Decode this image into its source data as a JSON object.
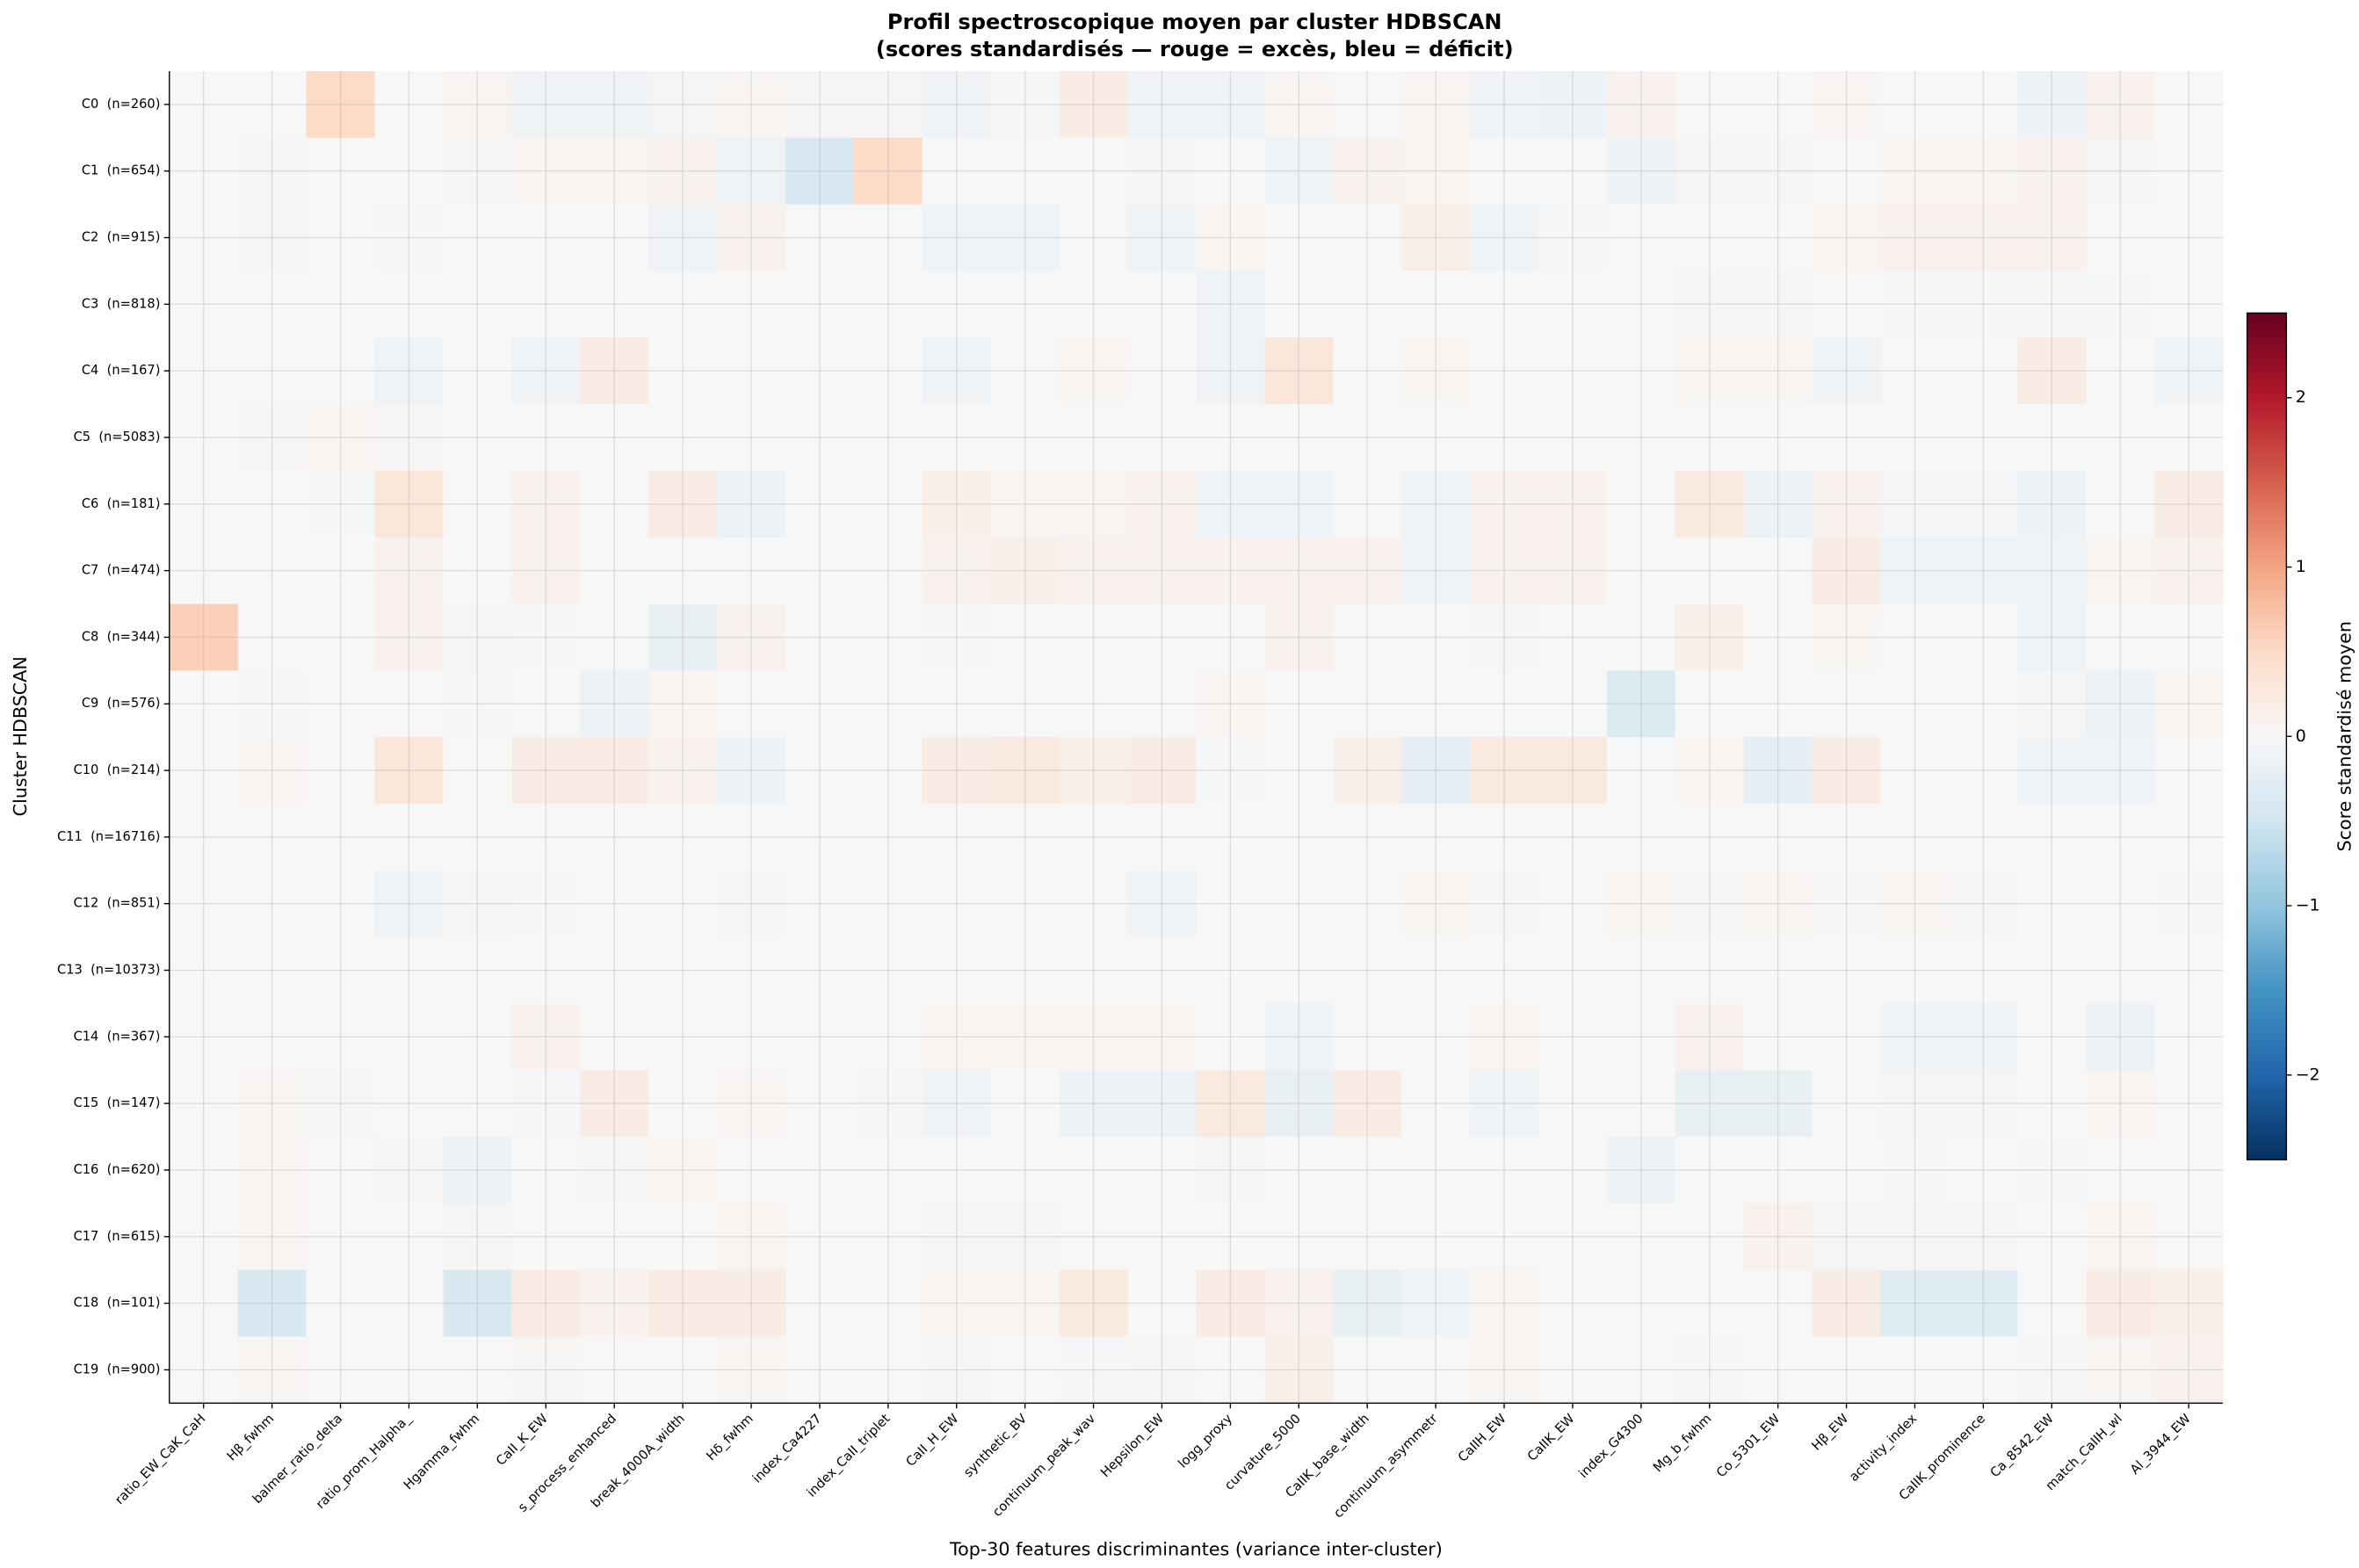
{
  "chart_data": {
    "type": "heatmap",
    "title": "Profil spectroscopique moyen par cluster HDBSCAN",
    "subtitle": "(scores standardisés — rouge = excès, bleu = déficit)",
    "x_label": "Top-30 features discriminantes (variance inter-cluster)",
    "y_label": "Cluster HDBSCAN",
    "colorbar_label": "Score standardisé moyen",
    "x_categories": [
      "ratio_EW_CaK_CaH",
      "Hβ_fwhm",
      "balmer_ratio_delta",
      "ratio_prom_Halpha_",
      "Hgamma_fwhm",
      "CaII_K_EW",
      "s_process_enhanced",
      "break_4000A_width",
      "Hδ_fwhm",
      "index_Ca4227",
      "index_CaII_triplet",
      "CaII_H_EW",
      "synthetic_BV",
      "continuum_peak_wav",
      "Hepsilon_EW",
      "logg_proxy",
      "curvature_5000",
      "CaIIK_base_width",
      "continuum_asymmetr",
      "CaIIH_EW",
      "CaIIK_EW",
      "index_G4300",
      "Mg_b_fwhm",
      "Co_5301_EW",
      "Hβ_EW",
      "activity_index",
      "CaIIK_prominence",
      "Ca_8542_EW",
      "match_CaIIH_wl",
      "Al_3944_EW"
    ],
    "y_categories": [
      "C0  (n=260)",
      "C1  (n=654)",
      "C2  (n=915)",
      "C3  (n=818)",
      "C4  (n=167)",
      "C5  (n=5083)",
      "C6  (n=181)",
      "C7  (n=474)",
      "C8  (n=344)",
      "C9  (n=576)",
      "C10  (n=214)",
      "C11  (n=16716)",
      "C12  (n=851)",
      "C13  (n=10373)",
      "C14  (n=367)",
      "C15  (n=147)",
      "C16  (n=620)",
      "C17  (n=615)",
      "C18  (n=101)",
      "C19  (n=900)"
    ],
    "values": [
      [
        0,
        0,
        0.5,
        0,
        0.05,
        -0.1,
        -0.1,
        -0.05,
        0.05,
        0.03,
        0.03,
        -0.1,
        -0.03,
        0.2,
        -0.1,
        -0.1,
        0.05,
        0,
        0.05,
        -0.1,
        -0.15,
        0.1,
        0,
        0,
        0.05,
        0,
        0,
        -0.15,
        0.1,
        0
      ],
      [
        0,
        -0.05,
        0,
        0,
        -0.05,
        0.05,
        0.05,
        0.1,
        -0.1,
        -0.4,
        0.5,
        0,
        0,
        0,
        0.03,
        0,
        -0.1,
        0.1,
        0.05,
        0,
        0,
        -0.15,
        0.03,
        0.03,
        0,
        0.05,
        0.05,
        0.1,
        -0.05,
        0
      ],
      [
        0,
        -0.05,
        0,
        -0.03,
        0,
        0,
        0,
        -0.1,
        0.1,
        0,
        0,
        -0.1,
        -0.1,
        0,
        -0.1,
        0.05,
        0,
        0,
        0.15,
        -0.1,
        -0.03,
        0,
        0,
        0,
        0.05,
        0.1,
        0.1,
        0.1,
        0,
        0
      ],
      [
        0,
        0,
        0,
        0,
        0,
        0,
        0,
        0,
        0,
        0,
        0,
        0,
        0,
        0,
        0,
        -0.1,
        0,
        0,
        0,
        0,
        0,
        0,
        0.03,
        0.03,
        0,
        -0.03,
        -0.03,
        -0.03,
        -0.03,
        0
      ],
      [
        0,
        0,
        0,
        -0.1,
        0,
        -0.1,
        0.2,
        0,
        0,
        0,
        0,
        -0.1,
        0,
        0.05,
        0,
        -0.1,
        0.3,
        0,
        0.05,
        0,
        0,
        0,
        0.05,
        0.05,
        -0.1,
        0,
        0,
        0.2,
        0,
        -0.1
      ],
      [
        0,
        0.03,
        0.05,
        0.03,
        0,
        0,
        0,
        0,
        0,
        0,
        0,
        0,
        0,
        0,
        0,
        0,
        0,
        0,
        0,
        0,
        0,
        0,
        0,
        0,
        0,
        0,
        0,
        0,
        0,
        0
      ],
      [
        0,
        0,
        -0.03,
        0.3,
        0,
        0.1,
        0,
        0.2,
        -0.15,
        0,
        0,
        0.15,
        0.05,
        0.05,
        0.1,
        -0.1,
        -0.1,
        0,
        -0.1,
        0.1,
        0.1,
        0,
        0.25,
        -0.15,
        0.1,
        -0.05,
        -0.05,
        -0.15,
        0,
        0.2
      ],
      [
        0,
        0,
        0,
        0.1,
        0,
        0.1,
        0,
        0,
        0,
        0,
        0,
        0.1,
        0.15,
        0.1,
        0.1,
        0.1,
        0.1,
        0.1,
        -0.1,
        0.1,
        0.1,
        0,
        0,
        0,
        0.2,
        -0.1,
        -0.1,
        -0.1,
        0.05,
        0.1
      ],
      [
        0.6,
        0,
        0,
        0.1,
        -0.05,
        -0.03,
        0,
        -0.2,
        0.1,
        0,
        0,
        -0.03,
        0,
        0,
        0,
        0,
        0.1,
        0,
        0,
        -0.03,
        0,
        0,
        0.15,
        0,
        0.05,
        0,
        0,
        -0.1,
        0,
        0
      ],
      [
        0,
        -0.03,
        0,
        0,
        -0.03,
        0,
        -0.15,
        0.05,
        0,
        0,
        0,
        0,
        0,
        0,
        0,
        0.05,
        0,
        0,
        0,
        0,
        0,
        -0.35,
        0,
        0,
        0,
        0,
        0,
        -0.05,
        -0.15,
        0.05
      ],
      [
        0,
        0.05,
        0,
        0.3,
        0,
        0.2,
        0.2,
        0.1,
        -0.15,
        0,
        0,
        0.2,
        0.25,
        0.15,
        0.2,
        -0.03,
        0,
        0.15,
        -0.25,
        0.25,
        0.25,
        0,
        0.05,
        -0.25,
        0.2,
        0,
        0,
        -0.1,
        -0.1,
        0
      ],
      [
        0,
        0,
        0,
        0,
        0,
        0,
        0,
        0,
        0,
        0,
        0,
        0,
        0,
        0,
        0,
        0,
        0,
        0,
        0,
        0,
        0,
        0,
        0,
        0,
        0,
        0,
        0,
        0,
        0,
        0
      ],
      [
        0,
        0,
        0,
        -0.1,
        0.03,
        -0.03,
        0,
        0,
        0.03,
        0,
        0,
        0,
        0,
        0,
        -0.1,
        0,
        0,
        0,
        0.05,
        -0.03,
        0,
        0.05,
        0.03,
        0.05,
        -0.03,
        0.05,
        0.03,
        0,
        0,
        -0.03
      ],
      [
        0,
        0,
        0,
        0,
        0,
        0,
        0,
        0,
        0,
        0,
        0,
        0,
        0,
        0,
        0,
        0,
        0,
        0,
        0,
        0,
        0,
        0,
        0,
        0,
        0,
        0,
        0,
        0,
        0,
        0
      ],
      [
        0,
        0,
        0,
        0,
        0,
        0.1,
        0,
        0,
        0,
        0,
        0,
        0.05,
        0.05,
        0.05,
        0.05,
        0,
        -0.1,
        0,
        0,
        0.05,
        0,
        0,
        0.1,
        0,
        0,
        -0.1,
        -0.1,
        0,
        -0.15,
        0
      ],
      [
        0,
        0.05,
        -0.03,
        0,
        0,
        -0.03,
        0.2,
        0,
        0.05,
        0,
        -0.03,
        -0.1,
        0,
        -0.15,
        -0.15,
        0.25,
        -0.2,
        0.2,
        0,
        -0.1,
        0,
        0,
        -0.2,
        -0.2,
        0,
        0.03,
        0.03,
        0,
        0.05,
        0
      ],
      [
        0,
        0.05,
        0,
        0.03,
        -0.15,
        0,
        0.03,
        0.05,
        0,
        0,
        0,
        0,
        0,
        0,
        0,
        0.03,
        0,
        0,
        0,
        0,
        0,
        -0.15,
        0,
        0,
        0,
        -0.03,
        0,
        -0.03,
        0,
        0
      ],
      [
        0,
        0.05,
        0,
        0,
        0.03,
        0,
        0,
        0,
        0.05,
        0,
        0,
        -0.05,
        -0.05,
        0,
        0,
        0,
        0,
        0,
        0,
        0,
        0,
        0,
        0,
        0.1,
        -0.05,
        0.03,
        0.03,
        0,
        0.05,
        0
      ],
      [
        0,
        -0.4,
        0,
        0,
        -0.4,
        0.2,
        0.1,
        0.2,
        0.2,
        0,
        0,
        0.05,
        0.05,
        0.25,
        0,
        0.2,
        0.1,
        -0.2,
        -0.1,
        0.05,
        0,
        0,
        0,
        0,
        0.2,
        -0.3,
        -0.3,
        0,
        0.2,
        0.15
      ],
      [
        0,
        0.05,
        0,
        0,
        0,
        0.03,
        0,
        0,
        0.05,
        0,
        0,
        0.03,
        0,
        -0.03,
        0.03,
        0,
        0.15,
        0,
        0,
        0.05,
        0,
        0,
        -0.03,
        0,
        0,
        0,
        0,
        -0.03,
        0.05,
        0.1
      ]
    ],
    "colormap": [
      "#053061",
      "#2166ac",
      "#4393c3",
      "#92c5de",
      "#d1e5f0",
      "#f7f7f7",
      "#fddbc7",
      "#f4a582",
      "#d6604d",
      "#b2182b",
      "#67001f"
    ],
    "clim": [
      -2.5,
      2.5
    ],
    "cticks": [
      {
        "value": -2,
        "label": "−2"
      },
      {
        "value": -1,
        "label": "−1"
      },
      0,
      1,
      2
    ],
    "grid": true
  }
}
